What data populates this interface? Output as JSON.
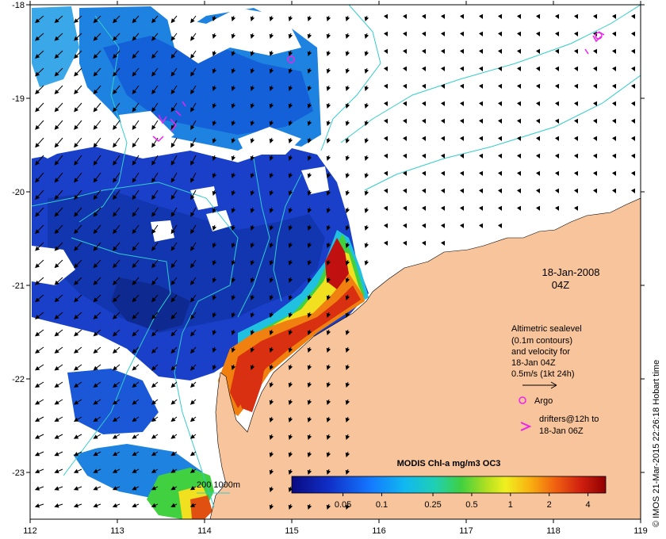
{
  "map": {
    "lon_range": [
      112,
      119
    ],
    "lat_range": [
      -23.5,
      -18
    ],
    "x_ticks": [
      "112",
      "113",
      "114",
      "115",
      "116",
      "117",
      "118",
      "119"
    ],
    "y_ticks": [
      "-18",
      "-19",
      "-20",
      "-21",
      "-22",
      "-23"
    ],
    "land_color": "#f8c49c",
    "contour_color": "#33cccc",
    "drifter_color": "#ee22ee"
  },
  "date": {
    "line1": "18-Jan-2008",
    "line2": "04Z"
  },
  "legend": {
    "altimetric_lines": [
      "Altimetric sealevel",
      "(0.1m contours)",
      "and velocity for",
      "18-Jan 04Z",
      "0.5m/s (1kt 24h)"
    ],
    "argo_label": "Argo",
    "drifters_lines": [
      "drifters@12h to",
      "18-Jan 06Z"
    ],
    "depth_label": "200  1000m"
  },
  "colorbar": {
    "title": "MODIS Chl-a mg/m3 OC3",
    "tick_labels": [
      "0.05",
      "0.1",
      "0.25",
      "0.5",
      "1",
      "2",
      "4"
    ],
    "tick_values": [
      0.05,
      0.1,
      0.25,
      0.5,
      1,
      2,
      4
    ],
    "range": [
      0.02,
      5.5
    ]
  },
  "credit": "© IMOS 21-Mar-2015 22:26:18 Hobart time"
}
